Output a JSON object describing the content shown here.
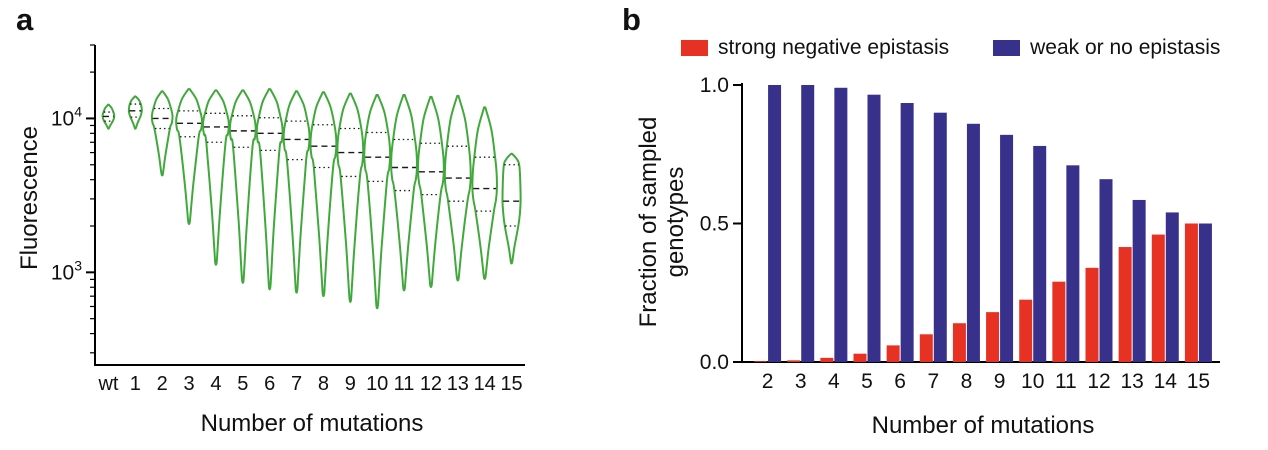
{
  "figure": {
    "panel_a_label": "a",
    "panel_b_label": "b",
    "background": "#ffffff"
  },
  "chart_data": [
    {
      "id": "panel-a",
      "type": "violin",
      "title": "",
      "xlabel": "Number of mutations",
      "ylabel": "Fluorescence",
      "yscale": "log",
      "ylim": [
        250,
        30000
      ],
      "yticks_major": [
        1000,
        10000
      ],
      "color": "#41a93c",
      "quartile_line_color": "#1a1a1a",
      "categories": [
        "wt",
        "1",
        "2",
        "3",
        "4",
        "5",
        "6",
        "7",
        "8",
        "9",
        "10",
        "11",
        "12",
        "13",
        "14",
        "15"
      ],
      "violins": [
        {
          "min": 8600,
          "q1": 9600,
          "median": 10300,
          "q3": 11000,
          "max": 12300,
          "w": 0.45
        },
        {
          "min": 8600,
          "q1": 10200,
          "median": 11200,
          "q3": 12400,
          "max": 13900,
          "w": 0.5
        },
        {
          "min": 4300,
          "q1": 8600,
          "median": 10000,
          "q3": 11600,
          "max": 15000,
          "w": 0.8
        },
        {
          "min": 2100,
          "q1": 7600,
          "median": 9300,
          "q3": 11200,
          "max": 15500,
          "w": 1
        },
        {
          "min": 1150,
          "q1": 7000,
          "median": 8800,
          "q3": 10800,
          "max": 15200,
          "w": 1
        },
        {
          "min": 880,
          "q1": 6500,
          "median": 8300,
          "q3": 10400,
          "max": 15200,
          "w": 1
        },
        {
          "min": 800,
          "q1": 6200,
          "median": 8000,
          "q3": 10100,
          "max": 15500,
          "w": 1
        },
        {
          "min": 760,
          "q1": 5400,
          "median": 7300,
          "q3": 9600,
          "max": 15000,
          "w": 1
        },
        {
          "min": 720,
          "q1": 4800,
          "median": 6600,
          "q3": 9100,
          "max": 14800,
          "w": 1
        },
        {
          "min": 660,
          "q1": 4200,
          "median": 6000,
          "q3": 8600,
          "max": 14500,
          "w": 1
        },
        {
          "min": 600,
          "q1": 3900,
          "median": 5600,
          "q3": 8100,
          "max": 14200,
          "w": 1
        },
        {
          "min": 780,
          "q1": 3400,
          "median": 4800,
          "q3": 7300,
          "max": 14200,
          "w": 1
        },
        {
          "min": 820,
          "q1": 3200,
          "median": 4500,
          "q3": 6900,
          "max": 13800,
          "w": 1
        },
        {
          "min": 900,
          "q1": 2900,
          "median": 4100,
          "q3": 6600,
          "max": 14000,
          "w": 1
        },
        {
          "min": 920,
          "q1": 2500,
          "median": 3500,
          "q3": 5600,
          "max": 11800,
          "w": 0.95
        },
        {
          "min": 1150,
          "q1": 2000,
          "median": 2900,
          "q3": 5000,
          "max": 5900,
          "w": 0.7
        }
      ]
    },
    {
      "id": "panel-b",
      "type": "bar",
      "title": "",
      "xlabel": "Number of mutations",
      "ylabel": "Fraction of sampled genotypes",
      "ylabel_lines": [
        "Fraction of sampled",
        "genotypes"
      ],
      "ylim": [
        0,
        1
      ],
      "yticks": [
        0,
        0.5,
        1
      ],
      "legend_position": "top",
      "categories": [
        "2",
        "3",
        "4",
        "5",
        "6",
        "7",
        "8",
        "9",
        "10",
        "11",
        "12",
        "13",
        "14",
        "15"
      ],
      "series": [
        {
          "name": "strong negative epistasis",
          "color": "#e73223",
          "values": [
            0.003,
            0.006,
            0.015,
            0.03,
            0.06,
            0.1,
            0.14,
            0.18,
            0.225,
            0.29,
            0.34,
            0.415,
            0.46,
            0.5
          ]
        },
        {
          "name": "weak or no epistasis",
          "color": "#37318c",
          "values": [
            1.0,
            1.0,
            0.99,
            0.965,
            0.935,
            0.9,
            0.86,
            0.82,
            0.78,
            0.71,
            0.66,
            0.585,
            0.54,
            0.5
          ]
        }
      ]
    }
  ]
}
